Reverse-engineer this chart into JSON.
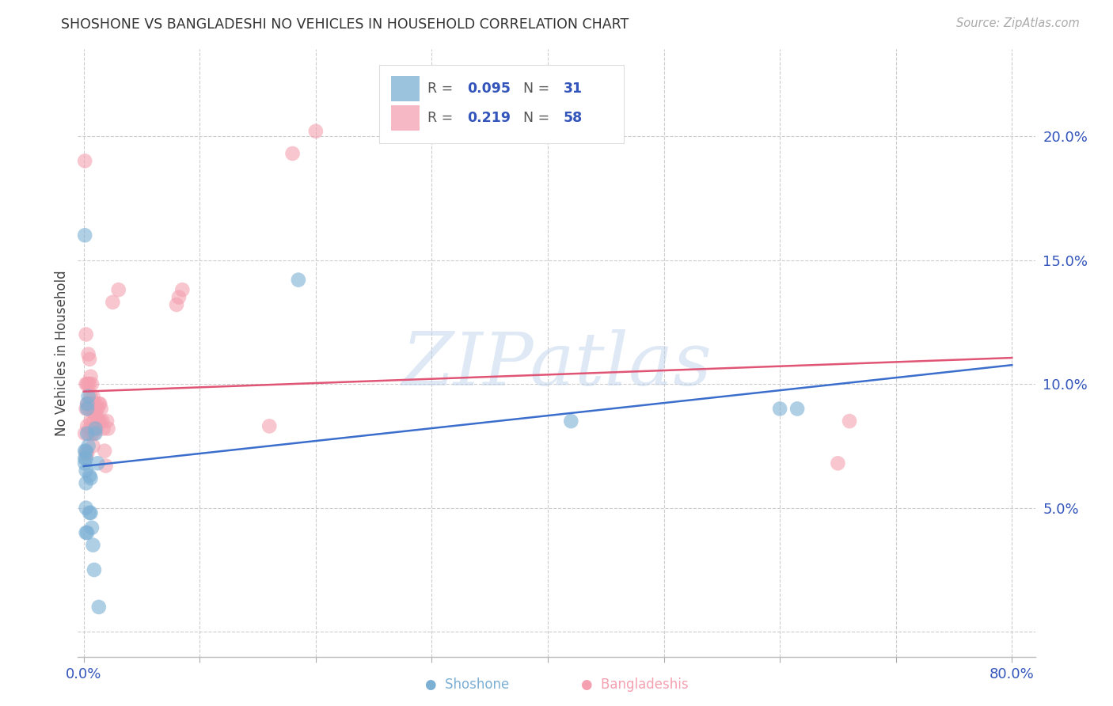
{
  "title": "SHOSHONE VS BANGLADESHI NO VEHICLES IN HOUSEHOLD CORRELATION CHART",
  "source": "Source: ZipAtlas.com",
  "ylabel": "No Vehicles in Household",
  "xlim": [
    -0.005,
    0.82
  ],
  "ylim": [
    -0.01,
    0.235
  ],
  "yticks": [
    0.0,
    0.05,
    0.1,
    0.15,
    0.2
  ],
  "xticks": [
    0.0,
    0.1,
    0.2,
    0.3,
    0.4,
    0.5,
    0.6,
    0.7,
    0.8
  ],
  "xtick_labels": [
    "0.0%",
    "",
    "",
    "",
    "",
    "",
    "",
    "",
    "80.0%"
  ],
  "ytick_labels": [
    "",
    "5.0%",
    "10.0%",
    "15.0%",
    "20.0%"
  ],
  "shoshone_color": "#7BAFD4",
  "bangladeshi_color": "#F4A0B0",
  "trendline_blue": "#3B6ECC",
  "trendline_pink": "#E05575",
  "shoshone_R": 0.095,
  "shoshone_N": 31,
  "bangladeshi_R": 0.219,
  "bangladeshi_N": 58,
  "legend_color": "#3355BB",
  "watermark": "ZIPatlas",
  "watermark_color": "#B8CEEA",
  "background_color": "#FFFFFF",
  "shoshone_x": [
    0.001,
    0.001,
    0.001,
    0.001,
    0.002,
    0.002,
    0.002,
    0.002,
    0.002,
    0.002,
    0.003,
    0.003,
    0.003,
    0.003,
    0.004,
    0.004,
    0.005,
    0.005,
    0.006,
    0.006,
    0.007,
    0.008,
    0.009,
    0.01,
    0.01,
    0.012,
    0.013,
    0.185,
    0.42,
    0.6,
    0.615
  ],
  "shoshone_y": [
    0.073,
    0.07,
    0.068,
    0.16,
    0.073,
    0.07,
    0.065,
    0.06,
    0.05,
    0.04,
    0.092,
    0.09,
    0.08,
    0.04,
    0.095,
    0.075,
    0.063,
    0.048,
    0.062,
    0.048,
    0.042,
    0.035,
    0.025,
    0.082,
    0.08,
    0.068,
    0.01,
    0.142,
    0.085,
    0.09,
    0.09
  ],
  "bangladeshi_x": [
    0.001,
    0.001,
    0.002,
    0.002,
    0.002,
    0.002,
    0.003,
    0.003,
    0.003,
    0.003,
    0.004,
    0.004,
    0.004,
    0.004,
    0.005,
    0.005,
    0.005,
    0.005,
    0.006,
    0.006,
    0.006,
    0.007,
    0.007,
    0.007,
    0.008,
    0.008,
    0.008,
    0.009,
    0.009,
    0.009,
    0.01,
    0.01,
    0.01,
    0.011,
    0.011,
    0.012,
    0.012,
    0.013,
    0.013,
    0.014,
    0.014,
    0.015,
    0.016,
    0.017,
    0.018,
    0.019,
    0.02,
    0.021,
    0.025,
    0.03,
    0.08,
    0.082,
    0.085,
    0.16,
    0.18,
    0.2,
    0.65,
    0.66
  ],
  "bangladeshi_y": [
    0.08,
    0.19,
    0.12,
    0.1,
    0.09,
    0.072,
    0.1,
    0.092,
    0.083,
    0.072,
    0.112,
    0.1,
    0.09,
    0.08,
    0.11,
    0.1,
    0.092,
    0.082,
    0.103,
    0.095,
    0.085,
    0.1,
    0.09,
    0.08,
    0.095,
    0.085,
    0.075,
    0.092,
    0.088,
    0.08,
    0.092,
    0.088,
    0.082,
    0.09,
    0.082,
    0.09,
    0.085,
    0.092,
    0.085,
    0.092,
    0.085,
    0.09,
    0.085,
    0.082,
    0.073,
    0.067,
    0.085,
    0.082,
    0.133,
    0.138,
    0.132,
    0.135,
    0.138,
    0.083,
    0.193,
    0.202,
    0.068,
    0.085
  ]
}
